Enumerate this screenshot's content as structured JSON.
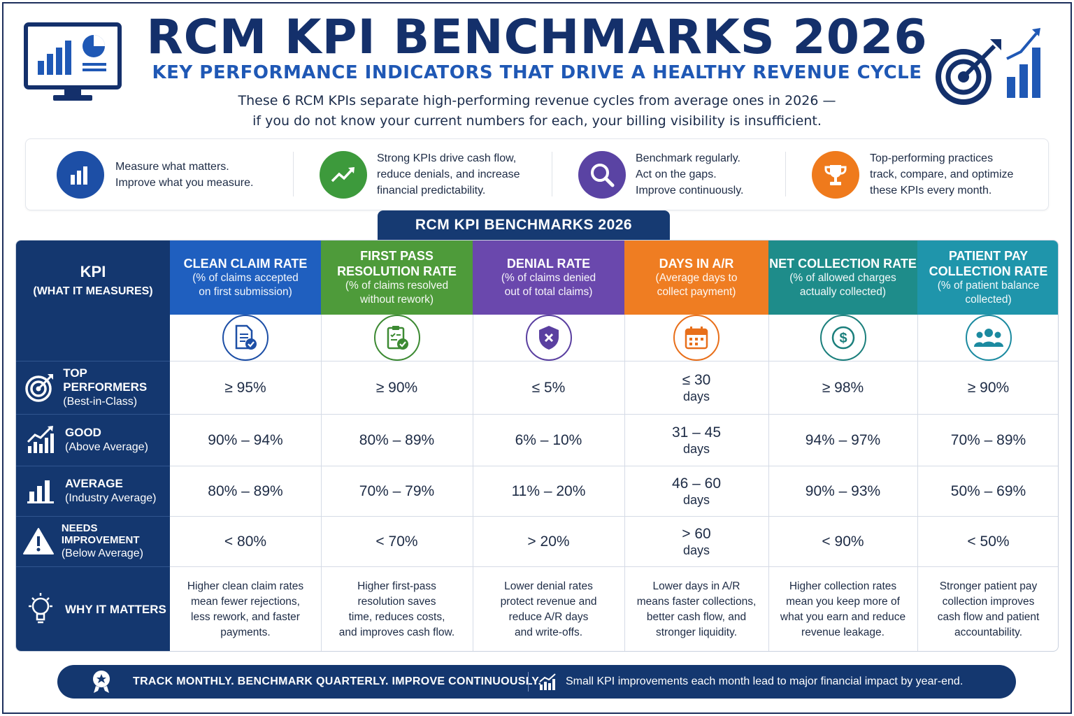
{
  "header": {
    "title": "RCM KPI BENCHMARKS 2026",
    "subtitle": "KEY PERFORMANCE INDICATORS THAT DRIVE A HEALTHY REVENUE CYCLE",
    "intro_line1": "These 6 RCM KPIs separate high-performing revenue cycles from average ones in 2026 —",
    "intro_line2": "if you do not know your current numbers for each, your billing visibility is insufficient."
  },
  "pillars": [
    {
      "icon": "bar-chart-icon",
      "color": "#1d4fa6",
      "lines": [
        "Measure what matters.",
        "Improve what you measure."
      ]
    },
    {
      "icon": "trend-up-icon",
      "color": "#3d9a3c",
      "lines": [
        "Strong KPIs drive cash flow,",
        "reduce denials, and increase",
        "financial predictability."
      ]
    },
    {
      "icon": "magnifier-icon",
      "color": "#5a43a3",
      "lines": [
        "Benchmark regularly.",
        "Act on the gaps.",
        "Improve continuously."
      ]
    },
    {
      "icon": "trophy-icon",
      "color": "#ef7a1c",
      "lines": [
        "Top-performing practices",
        "track, compare, and optimize",
        "these KPIs every month."
      ]
    }
  ],
  "table": {
    "banner": "RCM KPI BENCHMARKS 2026",
    "kpi_header": "KPI",
    "kpi_subheader": "(WHAT IT MEASURES)",
    "columns": [
      {
        "name_lines": [
          "CLEAN CLAIM RATE"
        ],
        "desc_lines": [
          "(% of claims accepted",
          "on first submission)"
        ],
        "color": "#1f5fbf",
        "ring": "#1d4fa6",
        "icon": "document-check-icon"
      },
      {
        "name_lines": [
          "FIRST PASS",
          "RESOLUTION RATE"
        ],
        "desc_lines": [
          "(% of claims resolved",
          "without rework)"
        ],
        "color": "#4e9b3a",
        "ring": "#3d8a33",
        "icon": "clipboard-check-icon"
      },
      {
        "name_lines": [
          "DENIAL RATE"
        ],
        "desc_lines": [
          "(% of claims denied",
          "out of total claims)"
        ],
        "color": "#6a48ad",
        "ring": "#5a3fa0",
        "icon": "shield-x-icon"
      },
      {
        "name_lines": [
          "DAYS IN A/R"
        ],
        "desc_lines": [
          "(Average days to",
          "collect payment)"
        ],
        "color": "#ef7d22",
        "ring": "#e86f1a",
        "icon": "calendar-icon"
      },
      {
        "name_lines": [
          "NET COLLECTION RATE"
        ],
        "desc_lines": [
          "(% of allowed charges",
          "actually collected)"
        ],
        "color": "#1e8c8a",
        "ring": "#1b7f7c",
        "icon": "dollar-coin-icon"
      },
      {
        "name_lines": [
          "PATIENT PAY",
          "COLLECTION RATE"
        ],
        "desc_lines": [
          "(% of patient balance",
          "collected)"
        ],
        "color": "#1f95ab",
        "ring": "#1b8aa0",
        "icon": "people-group-icon"
      }
    ],
    "rows": [
      {
        "label": "TOP PERFORMERS",
        "sublabel": "(Best-in-Class)",
        "icon": "target-icon",
        "values": [
          [
            "≥ 95%"
          ],
          [
            "≥ 90%"
          ],
          [
            "≤ 5%"
          ],
          [
            "≤ 30",
            "days"
          ],
          [
            "≥ 98%"
          ],
          [
            "≥ 90%"
          ]
        ]
      },
      {
        "label": "GOOD",
        "sublabel": "(Above Average)",
        "icon": "growth-chart-icon",
        "values": [
          [
            "90% – 94%"
          ],
          [
            "80% – 89%"
          ],
          [
            "6% – 10%"
          ],
          [
            "31 – 45",
            "days"
          ],
          [
            "94% – 97%"
          ],
          [
            "70% – 89%"
          ]
        ]
      },
      {
        "label": "AVERAGE",
        "sublabel": "(Industry Average)",
        "icon": "bar-chart-icon",
        "values": [
          [
            "80% – 89%"
          ],
          [
            "70% – 79%"
          ],
          [
            "11% – 20%"
          ],
          [
            "46 – 60",
            "days"
          ],
          [
            "90% – 93%"
          ],
          [
            "50% – 69%"
          ]
        ]
      },
      {
        "label": "NEEDS IMPROVEMENT",
        "sublabel": "(Below Average)",
        "icon": "warning-icon",
        "values": [
          [
            "< 80%"
          ],
          [
            "< 70%"
          ],
          [
            "> 20%"
          ],
          [
            "> 60",
            "days"
          ],
          [
            "< 90%"
          ],
          [
            "< 50%"
          ]
        ]
      }
    ],
    "why": {
      "label": "WHY IT MATTERS",
      "icon": "lightbulb-icon",
      "texts": [
        [
          "Higher clean claim rates",
          "mean fewer rejections,",
          "less rework, and faster",
          "payments."
        ],
        [
          "Higher first-pass",
          "resolution saves",
          "time, reduces costs,",
          "and improves cash flow."
        ],
        [
          "Lower denial rates",
          "protect revenue and",
          "reduce A/R days",
          "and write-offs."
        ],
        [
          "Lower days in A/R",
          "means faster collections,",
          "better cash flow, and",
          "stronger liquidity."
        ],
        [
          "Higher collection rates",
          "mean you keep more of",
          "what you earn and reduce",
          "revenue leakage."
        ],
        [
          "Stronger patient pay",
          "collection improves",
          "cash flow and patient",
          "accountability."
        ]
      ]
    }
  },
  "footer": {
    "left_icon": "award-badge-icon",
    "left_text": "TRACK MONTHLY.  BENCHMARK QUARTERLY.  IMPROVE CONTINUOUSLY.",
    "right_icon": "growth-chart-icon",
    "right_text": "Small KPI improvements each month lead to major financial impact by year-end."
  }
}
